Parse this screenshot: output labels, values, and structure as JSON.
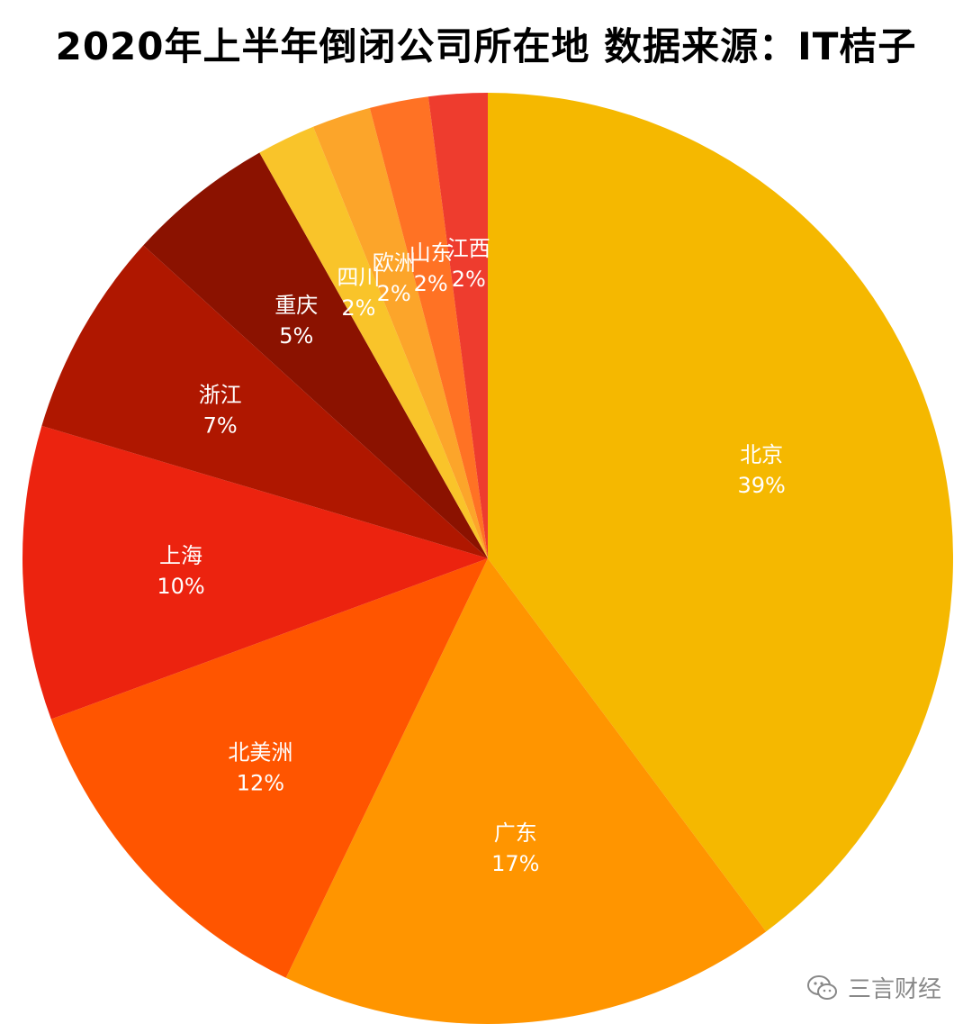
{
  "chart_data": {
    "type": "pie",
    "title": "2020年上半年倒闭公司所在地 数据来源：IT桔子",
    "slices": [
      {
        "label": "北京",
        "value": 39,
        "value_label": "39%",
        "color": "#F5B800"
      },
      {
        "label": "广东",
        "value": 17,
        "value_label": "17%",
        "color": "#FF9500"
      },
      {
        "label": "北美洲",
        "value": 12,
        "value_label": "12%",
        "color": "#FF5500"
      },
      {
        "label": "上海",
        "value": 10,
        "value_label": "10%",
        "color": "#EC230F"
      },
      {
        "label": "浙江",
        "value": 7,
        "value_label": "7%",
        "color": "#AF1700"
      },
      {
        "label": "重庆",
        "value": 5,
        "value_label": "5%",
        "color": "#8B1200"
      },
      {
        "label": "四川",
        "value": 2,
        "value_label": "2%",
        "color": "#F9C42A"
      },
      {
        "label": "欧洲",
        "value": 2,
        "value_label": "2%",
        "color": "#FCA52A"
      },
      {
        "label": "山东",
        "value": 2,
        "value_label": "2%",
        "color": "#FF7224"
      },
      {
        "label": "江西",
        "value": 2,
        "value_label": "2%",
        "color": "#EE3C2E"
      }
    ]
  },
  "watermark": {
    "text": "三言财经",
    "icon": "wechat-icon"
  }
}
